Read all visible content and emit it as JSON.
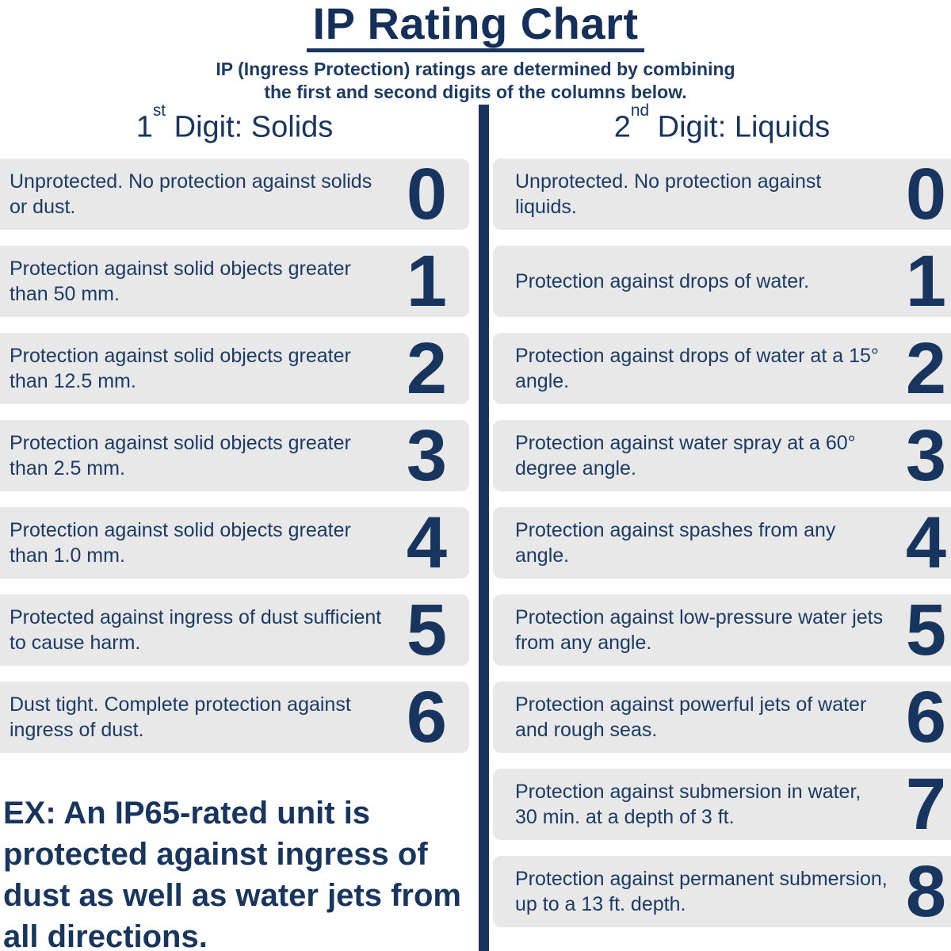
{
  "page": {
    "title": "IP Rating Chart",
    "subtitle_line1": "IP (Ingress Protection) ratings are determined by combining",
    "subtitle_line2": "the first and second digits of the columns below."
  },
  "colors": {
    "navy": "#17355e",
    "row_background": "#e8e8e8"
  },
  "columns": {
    "solids": {
      "header_number": "1",
      "header_ordinal": "st",
      "header_rest": " Digit: Solids",
      "rows": [
        {
          "digit": "0",
          "text": "Unprotected. No protection against solids or dust."
        },
        {
          "digit": "1",
          "text": "Protection against solid objects greater than 50 mm."
        },
        {
          "digit": "2",
          "text": "Protection against solid objects greater than 12.5 mm."
        },
        {
          "digit": "3",
          "text": "Protection against solid objects greater than 2.5 mm."
        },
        {
          "digit": "4",
          "text": "Protection against solid objects greater than 1.0 mm."
        },
        {
          "digit": "5",
          "text": "Protected against ingress of dust sufficient to cause harm."
        },
        {
          "digit": "6",
          "text": "Dust tight. Complete protection against ingress of dust."
        }
      ]
    },
    "liquids": {
      "header_number": "2",
      "header_ordinal": "nd",
      "header_rest": " Digit: Liquids",
      "rows": [
        {
          "digit": "0",
          "text": "Unprotected. No protection against liquids."
        },
        {
          "digit": "1",
          "text": "Protection against drops of water."
        },
        {
          "digit": "2",
          "text": "Protection against drops of water at a 15° angle."
        },
        {
          "digit": "3",
          "text": "Protection against water spray at a 60° degree angle."
        },
        {
          "digit": "4",
          "text": "Protection against spashes from any angle."
        },
        {
          "digit": "5",
          "text": "Protection against low-pressure water jets from any angle."
        },
        {
          "digit": "6",
          "text": "Protection against powerful jets of water and rough seas."
        },
        {
          "digit": "7",
          "text": "Protection against submersion in water, 30 min. at a depth of 3 ft."
        },
        {
          "digit": "8",
          "text": "Protection against permanent submersion, up to a 13 ft. depth."
        }
      ]
    }
  },
  "example_note": "EX: An IP65-rated unit is protected against ingress of dust as well as water jets from all directions."
}
